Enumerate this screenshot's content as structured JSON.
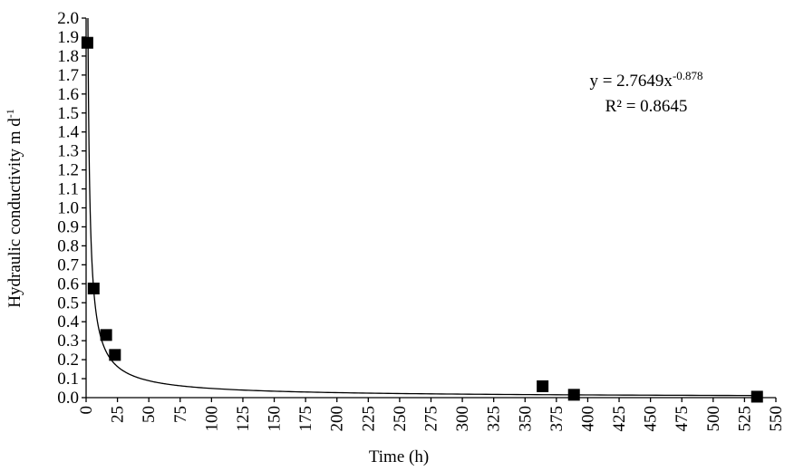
{
  "chart_data": {
    "type": "scatter",
    "xlabel": "Time (h)",
    "ylabel": "Hydraulic conductivity m d",
    "ylabel_sup": "-1",
    "x": [
      1,
      6,
      16,
      23,
      364,
      389,
      535
    ],
    "values": [
      1.87,
      0.575,
      0.33,
      0.225,
      0.06,
      0.015,
      0.005
    ],
    "color": "#000000",
    "xlim": [
      0,
      550
    ],
    "xticks": [
      0,
      25,
      50,
      75,
      100,
      125,
      150,
      175,
      200,
      225,
      250,
      275,
      300,
      325,
      350,
      375,
      400,
      425,
      450,
      475,
      500,
      525,
      550
    ],
    "ylim": [
      0,
      2
    ],
    "yticks": [
      {
        "value": 0,
        "label": "0.0"
      },
      0.1,
      0.2,
      0.3,
      0.4,
      0.5,
      0.6,
      0.7,
      0.8,
      0.9,
      {
        "value": 1,
        "label": "1.0"
      },
      1.1,
      1.2,
      1.3,
      1.4,
      1.5,
      1.6,
      1.7,
      1.8,
      1.9,
      {
        "value": 2,
        "label": "2.0"
      }
    ],
    "grid": false,
    "trendline": {
      "a": 2.7649,
      "b": -0.878
    },
    "equation": {
      "text": "y = 2.7649x",
      "exponent": "-0.878",
      "r2": "R² = 0.8645"
    }
  }
}
